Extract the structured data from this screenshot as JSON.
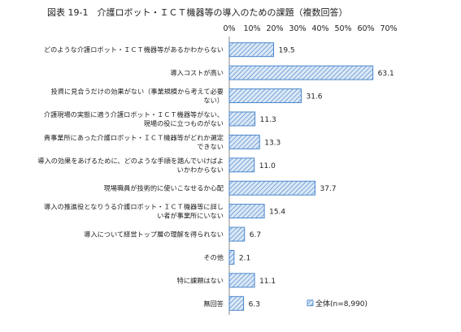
{
  "title": "図表 19-1　介護ロボット・ＩＣＴ機器等の導入のための課題（複数回答）",
  "chart_data": {
    "type": "bar",
    "orientation": "horizontal",
    "title": "図表 19-1　介護ロボット・ＩＣＴ機器等の導入のための課題（複数回答）",
    "x_ticks": [
      "0%",
      "10%",
      "20%",
      "30%",
      "40%",
      "50%",
      "60%",
      "70%"
    ],
    "xlim": [
      0,
      70
    ],
    "grid": false,
    "legend_position": "bottom-right",
    "categories": [
      [
        "どのような介護ロボット・ＩＣＴ機器等があるかわからない"
      ],
      [
        "導入コストが高い"
      ],
      [
        "投資に見合うだけの効果がない（事業規模から考えて必要",
        "ない）"
      ],
      [
        "介護現場の実態に適う介護ロボット・ＩＣＴ機器等がない、",
        "現場の役に立つものがない"
      ],
      [
        "貴事業所にあった介護ロボット・ＩＣＴ機器等がどれか選定",
        "できない"
      ],
      [
        "導入の効果をあげるために、どのような手順を踏んでいけばよ",
        "いかわからない"
      ],
      [
        "現場職員が技術的に使いこなせるか心配"
      ],
      [
        "導入の推進役となりうる介護ロボット・ＩＣＴ機器等に詳し",
        "い者が事業所にいない"
      ],
      [
        "導入について経営トップ層の理解を得られない"
      ],
      [
        "その他"
      ],
      [
        "特に課題はない"
      ],
      [
        "無回答"
      ]
    ],
    "series": [
      {
        "name": "全体(n=8,990)",
        "values": [
          19.5,
          63.1,
          31.6,
          11.3,
          13.3,
          11.0,
          37.7,
          15.4,
          6.7,
          2.1,
          11.1,
          6.3
        ],
        "labels": [
          "19.5",
          "63.1",
          "31.6",
          "11.3",
          "13.3",
          "11.0",
          "37.7",
          "15.4",
          "6.7",
          "2.1",
          "11.1",
          "6.3"
        ],
        "color": "#3d7dc8",
        "fill": "#c9ddf2"
      }
    ]
  }
}
